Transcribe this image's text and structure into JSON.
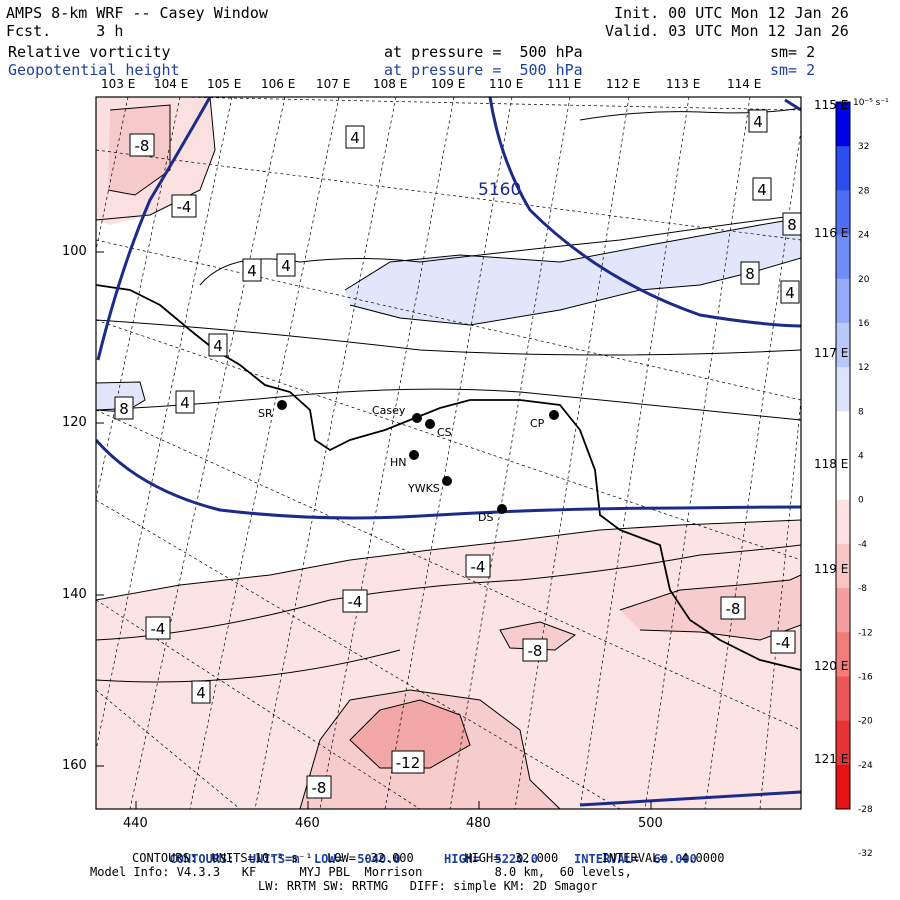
{
  "header": {
    "title": "AMPS 8-km WRF -- Casey Window",
    "fcst": "Fcst.     3 h",
    "init": "Init. 00 UTC Mon 12 Jan 26",
    "valid": "Valid. 03 UTC Mon 12 Jan 26",
    "field1_name": "Relative vorticity",
    "field1_level": "at pressure =  500 hPa",
    "field1_sm": "sm= 2",
    "field2_name": "Geopotential height",
    "field2_level": "at pressure =  500 hPa",
    "field2_sm": "sm= 2"
  },
  "lon_labels": [
    "103 E",
    "104 E",
    "105 E",
    "106 E",
    "107 E",
    "108 E",
    "109 E",
    "110 E",
    "111 E",
    "112 E",
    "113 E",
    "114 E"
  ],
  "lat_labels": [
    "115 E",
    "116 E",
    "117 E",
    "118 E",
    "119 E",
    "120 E",
    "121 E"
  ],
  "y_ticks": [
    "100",
    "120",
    "140",
    "160"
  ],
  "x_ticks": [
    "440",
    "460",
    "480",
    "500"
  ],
  "colorbar": {
    "unit": "10⁻⁵ s⁻¹",
    "labels": [
      "32",
      "28",
      "24",
      "20",
      "16",
      "12",
      "8",
      "4",
      "0",
      "-4",
      "-8",
      "-12",
      "-16",
      "-20",
      "-24",
      "-28",
      "-32"
    ],
    "colors": [
      "#0000e6",
      "#2a4df0",
      "#4d6ef5",
      "#6f8df7",
      "#94abf9",
      "#b8c8fb",
      "#dce3fd",
      "#ffffff",
      "#ffffff",
      "#fde2e2",
      "#f9c4c4",
      "#f4a0a0",
      "#f07c7c",
      "#ec5858",
      "#e83434",
      "#e41414"
    ]
  },
  "stations": [
    {
      "name": "SR"
    },
    {
      "name": "Casey"
    },
    {
      "name": "CS"
    },
    {
      "name": "HN"
    },
    {
      "name": "YWKS"
    },
    {
      "name": "DS"
    },
    {
      "name": "CP"
    }
  ],
  "contour_labels": {
    "height": "5160",
    "vort": [
      "-8",
      "-4",
      "4",
      "4",
      "4",
      "4",
      "4",
      "4",
      "8",
      "4",
      "8",
      "4",
      "4",
      "8",
      "-4",
      "-4",
      "-4",
      "-4",
      "-8",
      "-8",
      "-4",
      "4",
      "-12",
      "-8"
    ]
  },
  "footer": {
    "line1_a": "CONTOURS:  UNITS=m  LOW=  5040.0",
    "line1_b": "HIGH=  5220.0",
    "line1_c": "INTERVAL=  60.000",
    "line2": "CONTOURS:  UNITS=10⁻⁵ s⁻¹  LOW= -32.000       HIGH=  32.000      INTERVAL=  4.0000",
    "line3": "Model Info: V4.3.3   KF      MYJ PBL  Morrison          8.0 km,  60 levels,",
    "line4": "LW: RRTM SW: RRTMG   DIFF: simple KM: 2D Smagor"
  }
}
